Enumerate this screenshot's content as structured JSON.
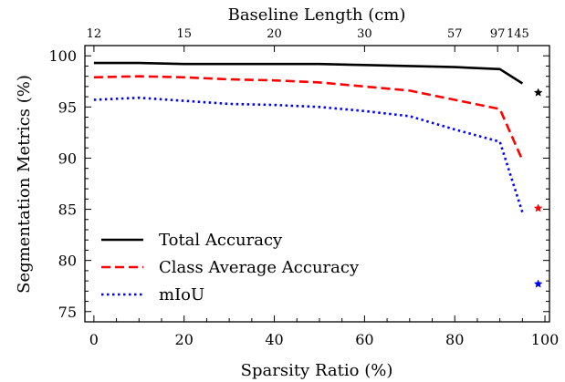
{
  "chart_data": {
    "type": "line",
    "xlabel": "Sparsity Ratio (%)",
    "ylabel": "Segmentation Metrics (%)",
    "top_xlabel": "Baseline Length (cm)",
    "xlim": [
      -2,
      101
    ],
    "ylim": [
      74,
      101
    ],
    "x_ticks": [
      0,
      20,
      40,
      60,
      80,
      100
    ],
    "y_ticks": [
      75,
      80,
      85,
      90,
      95,
      100
    ],
    "top_ticks": [
      {
        "label": "12",
        "x": 0
      },
      {
        "label": "15",
        "x": 20
      },
      {
        "label": "20",
        "x": 40
      },
      {
        "label": "30",
        "x": 60
      },
      {
        "label": "57",
        "x": 80
      },
      {
        "label": "97",
        "x": 89.5
      },
      {
        "label": "145",
        "x": 94
      }
    ],
    "series": [
      {
        "name": "Total Accuracy",
        "color": "#000000",
        "dash": "solid",
        "x": [
          0,
          10,
          20,
          30,
          40,
          50,
          60,
          70,
          80,
          90,
          95
        ],
        "y": [
          99.3,
          99.3,
          99.2,
          99.2,
          99.2,
          99.2,
          99.1,
          99.0,
          98.9,
          98.7,
          97.3
        ]
      },
      {
        "name": "Class Average Accuracy",
        "color": "#ff0000",
        "dash": "dashed",
        "x": [
          0,
          10,
          20,
          30,
          40,
          50,
          60,
          70,
          80,
          90,
          95
        ],
        "y": [
          97.9,
          98.0,
          97.9,
          97.7,
          97.6,
          97.4,
          97.0,
          96.6,
          95.7,
          94.8,
          89.8
        ]
      },
      {
        "name": "mIoU",
        "color": "#0000ff",
        "dash": "dotted",
        "x": [
          0,
          10,
          20,
          30,
          40,
          50,
          60,
          70,
          80,
          90,
          95
        ],
        "y": [
          95.7,
          95.9,
          95.6,
          95.3,
          95.2,
          95.0,
          94.6,
          94.1,
          92.8,
          91.6,
          84.7
        ]
      }
    ],
    "star_markers": [
      {
        "x": 98.5,
        "y": 96.4,
        "color": "#000000"
      },
      {
        "x": 98.5,
        "y": 85.1,
        "color": "#ff0000"
      },
      {
        "x": 98.5,
        "y": 77.7,
        "color": "#0000ff"
      }
    ],
    "legend_location": "lower-left"
  }
}
